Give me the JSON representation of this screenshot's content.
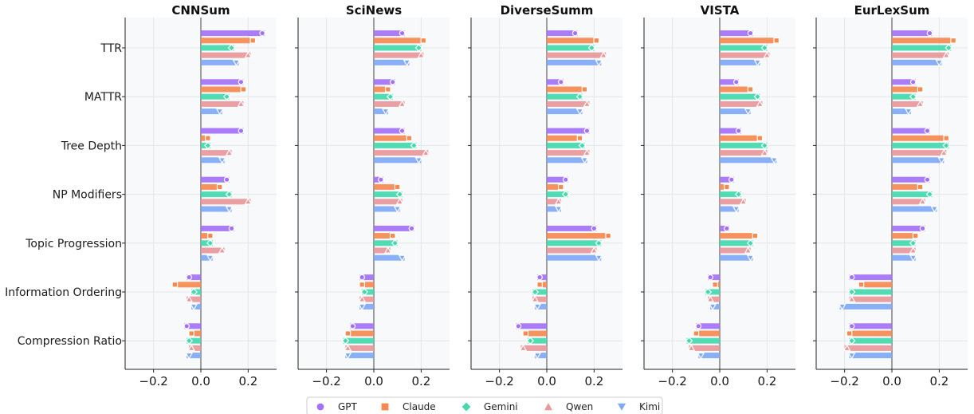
{
  "chart_data": {
    "type": "bar",
    "orientation": "horizontal",
    "categories": [
      "TTR",
      "MATTR",
      "Tree Depth",
      "NP Modifiers",
      "Topic Progression",
      "Information Ordering",
      "Compression Ratio"
    ],
    "xlim": [
      -0.32,
      0.32
    ],
    "xticks": [
      -0.2,
      0.0,
      0.2
    ],
    "xtick_labels": [
      "−0.2",
      "0.0",
      "0.2"
    ],
    "grid": true,
    "legend_position": "bottom-center",
    "series_meta": [
      {
        "name": "GPT",
        "color": "#a371f7",
        "marker": "circle"
      },
      {
        "name": "Claude",
        "color": "#f5894f",
        "marker": "square"
      },
      {
        "name": "Gemini",
        "color": "#43d9ad",
        "marker": "diamond"
      },
      {
        "name": "Qwen",
        "color": "#e8979a",
        "marker": "triangle-up"
      },
      {
        "name": "Kimi",
        "color": "#7fa8f5",
        "marker": "triangle-down"
      }
    ],
    "panels": [
      {
        "title": "CNNSum",
        "series": [
          {
            "name": "GPT",
            "values": [
              0.27,
              0.18,
              0.18,
              0.12,
              0.14,
              -0.06,
              -0.07
            ]
          },
          {
            "name": "Claude",
            "values": [
              0.23,
              0.19,
              0.04,
              0.09,
              0.05,
              -0.12,
              -0.05
            ]
          },
          {
            "name": "Gemini",
            "values": [
              0.14,
              0.12,
              0.04,
              0.13,
              0.05,
              -0.04,
              -0.06
            ]
          },
          {
            "name": "Qwen",
            "values": [
              0.21,
              0.18,
              0.13,
              0.21,
              0.1,
              -0.06,
              -0.05
            ]
          },
          {
            "name": "Kimi",
            "values": [
              0.16,
              0.09,
              0.1,
              0.13,
              0.05,
              -0.04,
              -0.06
            ]
          }
        ]
      },
      {
        "title": "SciNews",
        "series": [
          {
            "name": "GPT",
            "values": [
              0.13,
              0.09,
              0.13,
              0.04,
              0.17,
              -0.06,
              -0.1
            ]
          },
          {
            "name": "Claude",
            "values": [
              0.22,
              0.07,
              0.16,
              0.11,
              0.09,
              -0.06,
              -0.12
            ]
          },
          {
            "name": "Gemini",
            "values": [
              0.2,
              0.08,
              0.18,
              0.12,
              0.1,
              -0.05,
              -0.13
            ]
          },
          {
            "name": "Qwen",
            "values": [
              0.21,
              0.13,
              0.23,
              0.12,
              0.07,
              -0.06,
              -0.12
            ]
          },
          {
            "name": "Kimi",
            "values": [
              0.15,
              0.06,
              0.2,
              0.11,
              0.13,
              -0.06,
              -0.12
            ]
          }
        ]
      },
      {
        "title": "DiverseSumm",
        "series": [
          {
            "name": "GPT",
            "values": [
              0.13,
              0.07,
              0.18,
              0.09,
              0.21,
              -0.04,
              -0.13
            ]
          },
          {
            "name": "Claude",
            "values": [
              0.22,
              0.17,
              0.15,
              0.07,
              0.27,
              -0.04,
              -0.1
            ]
          },
          {
            "name": "Gemini",
            "values": [
              0.2,
              0.15,
              0.16,
              0.09,
              0.23,
              -0.06,
              -0.08
            ]
          },
          {
            "name": "Qwen",
            "values": [
              0.25,
              0.18,
              0.18,
              0.06,
              0.21,
              -0.06,
              -0.11
            ]
          },
          {
            "name": "Kimi",
            "values": [
              0.23,
              0.15,
              0.17,
              0.06,
              0.23,
              -0.05,
              -0.05
            ]
          }
        ]
      },
      {
        "title": "VISTA",
        "series": [
          {
            "name": "GPT",
            "values": [
              0.14,
              0.08,
              0.09,
              0.06,
              0.04,
              -0.05,
              -0.1
            ]
          },
          {
            "name": "Claude",
            "values": [
              0.25,
              0.14,
              0.18,
              0.04,
              0.16,
              -0.03,
              -0.11
            ]
          },
          {
            "name": "Gemini",
            "values": [
              0.2,
              0.17,
              0.2,
              0.09,
              0.14,
              -0.06,
              -0.14
            ]
          },
          {
            "name": "Qwen",
            "values": [
              0.21,
              0.18,
              0.2,
              0.11,
              0.13,
              -0.05,
              -0.13
            ]
          },
          {
            "name": "Kimi",
            "values": [
              0.17,
              0.13,
              0.24,
              0.08,
              0.14,
              -0.04,
              -0.09
            ]
          }
        ]
      },
      {
        "title": "EurLexSum",
        "series": [
          {
            "name": "GPT",
            "values": [
              0.17,
              0.1,
              0.16,
              0.16,
              0.14,
              -0.18,
              -0.18
            ]
          },
          {
            "name": "Claude",
            "values": [
              0.27,
              0.13,
              0.24,
              0.13,
              0.11,
              -0.14,
              -0.19
            ]
          },
          {
            "name": "Gemini",
            "values": [
              0.25,
              0.1,
              0.24,
              0.17,
              0.1,
              -0.18,
              -0.18
            ]
          },
          {
            "name": "Qwen",
            "values": [
              0.24,
              0.13,
              0.23,
              0.14,
              0.1,
              -0.18,
              -0.2
            ]
          },
          {
            "name": "Kimi",
            "values": [
              0.21,
              0.08,
              0.22,
              0.19,
              0.1,
              -0.22,
              -0.18
            ]
          }
        ]
      }
    ]
  }
}
